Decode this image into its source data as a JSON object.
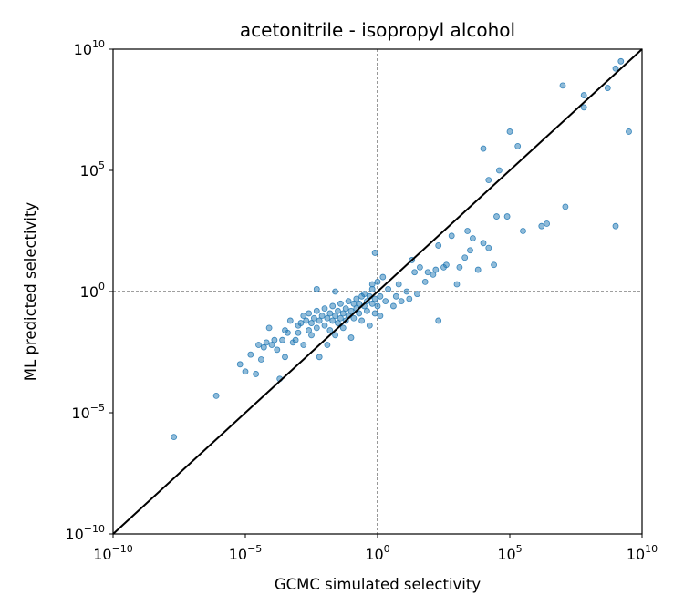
{
  "chart_data": {
    "type": "scatter",
    "title": "acetonitrile - isopropyl alcohol",
    "xlabel": "GCMC simulated selectivity",
    "ylabel": "ML predicted selectivity",
    "xscale": "log",
    "yscale": "log",
    "xlim": [
      1e-10,
      10000000000.0
    ],
    "ylim": [
      1e-10,
      10000000000.0
    ],
    "x_ticks": [
      {
        "base": "10",
        "exp": "−10"
      },
      {
        "base": "10",
        "exp": "−5"
      },
      {
        "base": "10",
        "exp": "0"
      },
      {
        "base": "10",
        "exp": "5"
      },
      {
        "base": "10",
        "exp": "10"
      }
    ],
    "y_ticks": [
      {
        "base": "10",
        "exp": "−10"
      },
      {
        "base": "10",
        "exp": "−5"
      },
      {
        "base": "10",
        "exp": "0"
      },
      {
        "base": "10",
        "exp": "5"
      },
      {
        "base": "10",
        "exp": "10"
      }
    ],
    "reference_line": "y = x",
    "reference_lines_dashed": {
      "x": 1,
      "y": 1
    },
    "grid": false,
    "marker_color": "#1f77b4",
    "line_color": "#000000",
    "points_log10": [
      [
        -7.7,
        -6.0
      ],
      [
        -6.1,
        -4.3
      ],
      [
        -5.2,
        -3.0
      ],
      [
        -5.0,
        -3.3
      ],
      [
        -4.8,
        -2.6
      ],
      [
        -4.6,
        -3.4
      ],
      [
        -4.4,
        -2.8
      ],
      [
        -4.5,
        -2.2
      ],
      [
        -4.3,
        -2.3
      ],
      [
        -4.2,
        -2.1
      ],
      [
        -4.0,
        -2.2
      ],
      [
        -4.1,
        -1.5
      ],
      [
        -3.9,
        -2.0
      ],
      [
        -3.8,
        -2.4
      ],
      [
        -3.7,
        -3.6
      ],
      [
        -3.6,
        -2.0
      ],
      [
        -3.5,
        -1.6
      ],
      [
        -3.5,
        -2.7
      ],
      [
        -3.4,
        -1.7
      ],
      [
        -3.3,
        -1.2
      ],
      [
        -3.2,
        -2.1
      ],
      [
        -3.1,
        -2.0
      ],
      [
        -3.0,
        -1.4
      ],
      [
        -3.0,
        -1.7
      ],
      [
        -2.9,
        -1.3
      ],
      [
        -2.8,
        -2.2
      ],
      [
        -2.8,
        -1.0
      ],
      [
        -2.7,
        -1.2
      ],
      [
        -2.6,
        -1.6
      ],
      [
        -2.6,
        -0.9
      ],
      [
        -2.5,
        -1.3
      ],
      [
        -2.5,
        -1.8
      ],
      [
        -2.4,
        -1.1
      ],
      [
        -2.3,
        -1.5
      ],
      [
        -2.3,
        -0.8
      ],
      [
        -2.2,
        -1.2
      ],
      [
        -2.2,
        -2.7
      ],
      [
        -2.1,
        -1.0
      ],
      [
        -2.0,
        -1.4
      ],
      [
        -2.0,
        -0.7
      ],
      [
        -1.9,
        -1.1
      ],
      [
        -1.9,
        -2.2
      ],
      [
        -1.8,
        -0.9
      ],
      [
        -1.8,
        -1.6
      ],
      [
        -1.7,
        -1.2
      ],
      [
        -1.7,
        -0.6
      ],
      [
        -1.6,
        -1.0
      ],
      [
        -1.6,
        -1.8
      ],
      [
        -1.5,
        -0.8
      ],
      [
        -1.5,
        -1.3
      ],
      [
        -1.4,
        -0.5
      ],
      [
        -1.4,
        -1.1
      ],
      [
        -1.3,
        -0.9
      ],
      [
        -1.3,
        -1.5
      ],
      [
        -1.2,
        -0.7
      ],
      [
        -1.2,
        -1.2
      ],
      [
        -1.1,
        -0.4
      ],
      [
        -1.1,
        -1.0
      ],
      [
        -1.0,
        -0.8
      ],
      [
        -1.0,
        -1.9
      ],
      [
        -0.9,
        -0.5
      ],
      [
        -0.9,
        -1.1
      ],
      [
        -0.8,
        -0.7
      ],
      [
        -0.8,
        -0.3
      ],
      [
        -0.7,
        -0.9
      ],
      [
        -0.7,
        -0.5
      ],
      [
        -0.6,
        -0.2
      ],
      [
        -0.6,
        -1.2
      ],
      [
        -0.5,
        -0.6
      ],
      [
        -0.5,
        -0.1
      ],
      [
        -0.4,
        -0.8
      ],
      [
        -0.4,
        -0.4
      ],
      [
        -0.3,
        -0.2
      ],
      [
        -0.3,
        -1.4
      ],
      [
        -0.2,
        -0.5
      ],
      [
        -0.2,
        0.1
      ],
      [
        -0.1,
        -0.3
      ],
      [
        -0.1,
        -0.9
      ],
      [
        0.0,
        -0.6
      ],
      [
        0.0,
        0.4
      ],
      [
        0.1,
        -0.2
      ],
      [
        0.1,
        -1.0
      ],
      [
        -2.3,
        0.1
      ],
      [
        -1.6,
        0.0
      ],
      [
        -0.2,
        0.3
      ],
      [
        0.2,
        0.6
      ],
      [
        0.3,
        -0.4
      ],
      [
        0.4,
        0.1
      ],
      [
        0.6,
        -0.6
      ],
      [
        0.7,
        -0.2
      ],
      [
        0.8,
        0.3
      ],
      [
        0.9,
        -0.4
      ],
      [
        1.1,
        0.0
      ],
      [
        1.2,
        -0.3
      ],
      [
        1.3,
        1.3
      ],
      [
        1.4,
        0.8
      ],
      [
        1.5,
        -0.1
      ],
      [
        1.6,
        1.0
      ],
      [
        1.8,
        0.4
      ],
      [
        1.9,
        0.8
      ],
      [
        2.1,
        0.7
      ],
      [
        2.2,
        0.9
      ],
      [
        2.3,
        1.9
      ],
      [
        2.5,
        1.0
      ],
      [
        2.6,
        1.1
      ],
      [
        2.8,
        2.3
      ],
      [
        3.0,
        0.3
      ],
      [
        3.1,
        1.0
      ],
      [
        3.3,
        1.4
      ],
      [
        3.4,
        2.5
      ],
      [
        3.5,
        1.7
      ],
      [
        3.6,
        2.2
      ],
      [
        3.8,
        0.9
      ],
      [
        4.0,
        2.0
      ],
      [
        4.2,
        1.8
      ],
      [
        4.4,
        1.1
      ],
      [
        2.3,
        -1.2
      ],
      [
        -0.1,
        1.6
      ],
      [
        4.5,
        3.1
      ],
      [
        4.0,
        5.9
      ],
      [
        4.2,
        4.6
      ],
      [
        4.6,
        5.0
      ],
      [
        5.0,
        6.6
      ],
      [
        5.3,
        6.0
      ],
      [
        4.9,
        3.1
      ],
      [
        5.5,
        2.5
      ],
      [
        6.4,
        2.8
      ],
      [
        7.1,
        3.5
      ],
      [
        6.2,
        2.7
      ],
      [
        7.0,
        8.5
      ],
      [
        7.8,
        8.1
      ],
      [
        7.8,
        7.6
      ],
      [
        8.7,
        8.4
      ],
      [
        9.0,
        9.2
      ],
      [
        9.2,
        9.5
      ],
      [
        9.5,
        6.6
      ],
      [
        9.0,
        2.7
      ]
    ]
  }
}
